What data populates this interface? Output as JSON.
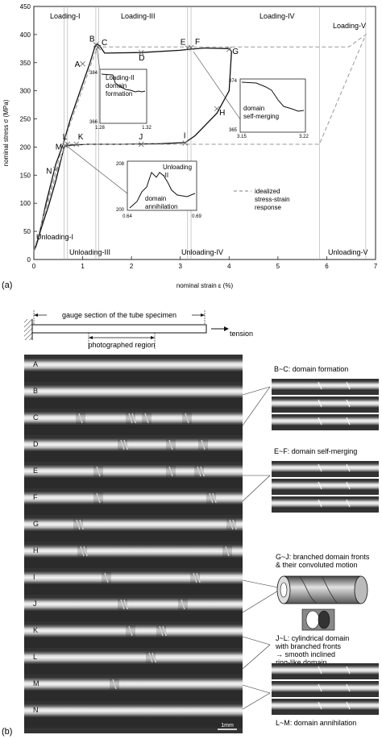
{
  "panel_a": {
    "panel_label": "(a)",
    "chart_data": {
      "type": "line",
      "xlabel": "nominal strain ε (%)",
      "ylabel": "nominal stress σ (MPa)",
      "xlim": [
        0,
        7
      ],
      "ylim": [
        0,
        450
      ],
      "xticks": [
        "0",
        "1",
        "2",
        "3",
        "4",
        "5",
        "6",
        "7"
      ],
      "yticks": [
        "0",
        "50",
        "100",
        "150",
        "200",
        "250",
        "300",
        "350",
        "400",
        "450"
      ],
      "grid": false,
      "legend": "idealized\nstress-strain\nresponse",
      "legend_position": "center-right",
      "regions_top": [
        "Loading-I",
        "Loading-III",
        "Loading-IV",
        "Loading-V"
      ],
      "regions_bottom": [
        "Unloading-I",
        "Unloading-III",
        "Unloading-IV",
        "Unloading-V"
      ],
      "series": [
        {
          "x": [
            0,
            0.1,
            0.25,
            0.45,
            0.6,
            0.75,
            0.95,
            1.15,
            1.25,
            1.3,
            1.35,
            1.45,
            2.2,
            3.0,
            3.2,
            3.5,
            4.0,
            4.05,
            4.0,
            3.75,
            3.3,
            3.1,
            2.6,
            1.8,
            1.1,
            0.7,
            0.62,
            0.55,
            0.45,
            0.3,
            0.15,
            0.05,
            0
          ],
          "y": [
            15,
            40,
            100,
            170,
            205,
            250,
            300,
            350,
            378,
            383,
            380,
            367,
            368,
            372,
            374,
            376,
            375,
            370,
            300,
            260,
            220,
            208,
            206,
            205,
            205,
            203,
            200,
            175,
            140,
            95,
            55,
            25,
            15
          ]
        },
        {
          "x": [
            0,
            0.6,
            1.3,
            3.95,
            6.45,
            6.8,
            5.85,
            0.7,
            0.62,
            0
          ],
          "y": [
            15,
            205,
            378,
            378,
            378,
            400,
            205,
            205,
            200,
            15
          ]
        }
      ],
      "points": [
        {
          "label": "A",
          "x": 1.0,
          "y": 348
        },
        {
          "label": "B",
          "x": 1.27,
          "y": 382
        },
        {
          "label": "C",
          "x": 1.32,
          "y": 377
        },
        {
          "label": "D",
          "x": 2.2,
          "y": 368
        },
        {
          "label": "E",
          "x": 3.15,
          "y": 376
        },
        {
          "label": "F",
          "x": 3.22,
          "y": 377
        },
        {
          "label": "G",
          "x": 4.0,
          "y": 374
        },
        {
          "label": "H",
          "x": 3.75,
          "y": 268
        },
        {
          "label": "I",
          "x": 3.1,
          "y": 207
        },
        {
          "label": "J",
          "x": 2.2,
          "y": 205
        },
        {
          "label": "K",
          "x": 0.87,
          "y": 205
        },
        {
          "label": "L",
          "x": 0.69,
          "y": 205
        },
        {
          "label": "M",
          "x": 0.64,
          "y": 203
        },
        {
          "label": "N",
          "x": 0.45,
          "y": 160
        }
      ]
    },
    "insets": [
      {
        "title": "Loading-II\ndomain\nformation",
        "ymax": "384",
        "ymin": "366",
        "xmin": "1.28",
        "xmax": "1.32"
      },
      {
        "title": "domain\nself-merging",
        "ymax": "374",
        "ymin": "365",
        "xmin": "3.15",
        "xmax": "3.22"
      },
      {
        "title": "Unloading\n-II",
        "sub": "domain\nannihilation",
        "ymax": "208",
        "ymin": "200",
        "xmin": "0.64",
        "xmax": "0.69"
      }
    ]
  },
  "panel_b": {
    "panel_label": "(b)",
    "gauge_label": "gauge section of the tube specimen",
    "photo_region_label": "photographed region",
    "tension_label": "tension",
    "row_labels": [
      "A",
      "B",
      "C",
      "D",
      "E",
      "F",
      "G",
      "H",
      "I",
      "J",
      "K",
      "L",
      "M",
      "N"
    ],
    "scale_bar": "1mm",
    "side_captions": [
      "B~C: domain formation",
      "E~F: domain self-merging",
      "G~J: branched domain fronts\n& their convoluted motion",
      "J~L: cylindrical domain\nwith branched fronts\n→ smooth inclined\nring-like domain",
      "L~M: domain annihilation"
    ]
  }
}
